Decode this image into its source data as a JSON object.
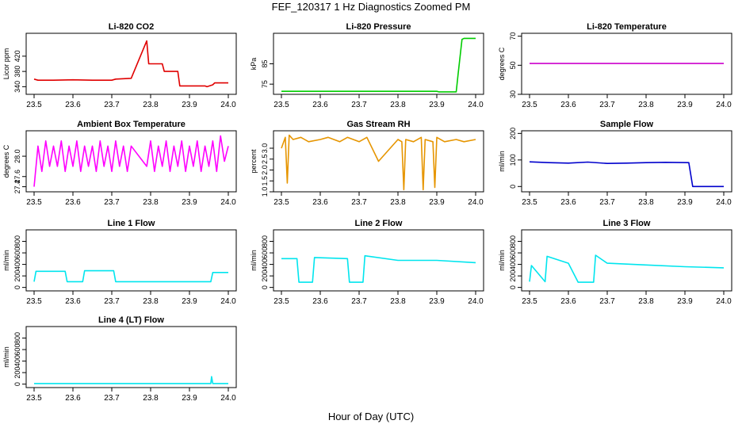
{
  "title": "FEF_120317 1 Hz Diagnostics Zoomed PM",
  "xlabel": "Hour of Day (UTC)",
  "chart_data": [
    {
      "type": "line",
      "title": "Li-820 CO2",
      "ylabel": "Licor ppm",
      "color": "#e00000",
      "xlim": [
        23.5,
        24.0
      ],
      "x_ticks": [
        "23.5",
        "23.6",
        "23.7",
        "23.8",
        "23.9",
        "24.0"
      ],
      "ylim": [
        320,
        480
      ],
      "y_ticks": [
        "340",
        "380",
        "420"
      ],
      "series": [
        {
          "x": [
            23.5,
            23.51,
            23.55,
            23.6,
            23.65,
            23.7,
            23.71,
            23.75,
            23.79,
            23.795,
            23.83,
            23.835,
            23.87,
            23.875,
            23.94,
            23.945,
            23.96,
            23.965,
            24.0
          ],
          "y": [
            360,
            357,
            357,
            358,
            357,
            357,
            360,
            362,
            460,
            400,
            400,
            380,
            380,
            342,
            342,
            340,
            345,
            350,
            350
          ]
        }
      ]
    },
    {
      "type": "line",
      "title": "Li-820 Pressure",
      "ylabel": "kPa",
      "color": "#00cc00",
      "xlim": [
        23.5,
        24.0
      ],
      "x_ticks": [
        "23.5",
        "23.6",
        "23.7",
        "23.8",
        "23.9",
        "24.0"
      ],
      "ylim": [
        70,
        100
      ],
      "y_ticks": [
        "75",
        "85"
      ],
      "series": [
        {
          "x": [
            23.5,
            23.6,
            23.8,
            23.9,
            23.905,
            23.95,
            23.955,
            23.965,
            23.97,
            24.0
          ],
          "y": [
            71.5,
            71.5,
            71.5,
            71.5,
            71.2,
            71.2,
            80,
            97,
            97.5,
            97.5
          ]
        }
      ]
    },
    {
      "type": "line",
      "title": "Li-820 Temperature",
      "ylabel": "degrees C",
      "color": "#cc00cc",
      "xlim": [
        23.5,
        24.0
      ],
      "x_ticks": [
        "23.5",
        "23.6",
        "23.7",
        "23.8",
        "23.9",
        "24.0"
      ],
      "ylim": [
        30,
        72
      ],
      "y_ticks": [
        "30",
        "50",
        "70"
      ],
      "series": [
        {
          "x": [
            23.5,
            24.0
          ],
          "y": [
            51.2,
            51.2
          ]
        }
      ]
    },
    {
      "type": "line",
      "title": "Ambient Box Temperature",
      "ylabel": "degrees C",
      "color": "#ff00ff",
      "xlim": [
        23.5,
        24.0
      ],
      "x_ticks": [
        "23.5",
        "23.6",
        "23.7",
        "23.8",
        "23.9",
        "24.0"
      ],
      "ylim": [
        27.3,
        28.5
      ],
      "y_ticks": [
        "27.4",
        "27.6",
        "28.0"
      ],
      "series": [
        {
          "x": [
            23.5,
            23.51,
            23.52,
            23.53,
            23.54,
            23.55,
            23.56,
            23.57,
            23.58,
            23.59,
            23.6,
            23.61,
            23.62,
            23.63,
            23.64,
            23.65,
            23.66,
            23.67,
            23.68,
            23.69,
            23.7,
            23.71,
            23.72,
            23.73,
            23.74,
            23.75,
            23.79,
            23.8,
            23.81,
            23.82,
            23.83,
            23.84,
            23.85,
            23.86,
            23.87,
            23.88,
            23.89,
            23.9,
            23.91,
            23.92,
            23.93,
            23.94,
            23.95,
            23.96,
            23.97,
            23.98,
            23.99,
            24.0
          ],
          "y": [
            27.4,
            28.2,
            27.7,
            28.3,
            27.8,
            28.2,
            27.8,
            28.3,
            27.7,
            28.2,
            27.8,
            28.3,
            27.7,
            28.2,
            27.8,
            28.2,
            27.7,
            28.3,
            27.8,
            28.2,
            27.7,
            28.3,
            27.8,
            28.2,
            27.7,
            28.2,
            27.8,
            28.3,
            27.7,
            28.2,
            27.8,
            28.3,
            27.7,
            28.2,
            27.8,
            28.3,
            27.7,
            28.2,
            27.8,
            28.3,
            27.7,
            28.2,
            27.8,
            28.3,
            27.7,
            28.4,
            27.9,
            28.2
          ]
        }
      ]
    },
    {
      "type": "line",
      "title": "Gas Stream RH",
      "ylabel": "percent",
      "color": "#e69500",
      "xlim": [
        23.5,
        24.0
      ],
      "x_ticks": [
        "23.5",
        "23.6",
        "23.7",
        "23.8",
        "23.9",
        "24.0"
      ],
      "ylim": [
        1.0,
        3.8
      ],
      "y_ticks": [
        "1.0",
        "1.5",
        "2.0",
        "2.5",
        "3.0"
      ],
      "series": [
        {
          "x": [
            23.5,
            23.51,
            23.515,
            23.52,
            23.53,
            23.55,
            23.57,
            23.6,
            23.62,
            23.65,
            23.67,
            23.7,
            23.72,
            23.75,
            23.79,
            23.8,
            23.81,
            23.815,
            23.82,
            23.84,
            23.86,
            23.865,
            23.87,
            23.89,
            23.895,
            23.9,
            23.92,
            23.95,
            23.97,
            24.0
          ],
          "y": [
            3.0,
            3.5,
            1.4,
            3.6,
            3.4,
            3.5,
            3.3,
            3.4,
            3.5,
            3.3,
            3.5,
            3.3,
            3.5,
            2.4,
            3.2,
            3.4,
            3.3,
            1.1,
            3.4,
            3.3,
            3.5,
            1.1,
            3.4,
            3.3,
            1.2,
            3.5,
            3.3,
            3.4,
            3.3,
            3.4
          ]
        }
      ]
    },
    {
      "type": "line",
      "title": "Sample Flow",
      "ylabel": "ml/min",
      "color": "#0000cc",
      "xlim": [
        23.5,
        24.0
      ],
      "x_ticks": [
        "23.5",
        "23.6",
        "23.7",
        "23.8",
        "23.9",
        "24.0"
      ],
      "ylim": [
        -20,
        210
      ],
      "y_ticks": [
        "0",
        "100",
        "200"
      ],
      "series": [
        {
          "x": [
            23.5,
            23.55,
            23.6,
            23.65,
            23.7,
            23.75,
            23.8,
            23.85,
            23.91,
            23.92,
            24.0
          ],
          "y": [
            93,
            90,
            88,
            92,
            87,
            88,
            90,
            91,
            90,
            0,
            0
          ]
        }
      ]
    },
    {
      "type": "line",
      "title": "Line 1 Flow",
      "ylabel": "ml/min",
      "color": "#00e5ee",
      "xlim": [
        23.5,
        24.0
      ],
      "x_ticks": [
        "23.5",
        "23.6",
        "23.7",
        "23.8",
        "23.9",
        "24.0"
      ],
      "ylim": [
        -60,
        1000
      ],
      "y_ticks": [
        "0",
        "200",
        "400",
        "600",
        "800"
      ],
      "series": [
        {
          "x": [
            23.5,
            23.505,
            23.58,
            23.585,
            23.625,
            23.63,
            23.705,
            23.71,
            23.955,
            23.96,
            24.0
          ],
          "y": [
            100,
            280,
            280,
            100,
            100,
            290,
            290,
            100,
            100,
            260,
            260
          ]
        }
      ]
    },
    {
      "type": "line",
      "title": "Line 2 Flow",
      "ylabel": "ml/min",
      "color": "#00e5ee",
      "xlim": [
        23.5,
        24.0
      ],
      "x_ticks": [
        "23.5",
        "23.6",
        "23.7",
        "23.8",
        "23.9",
        "24.0"
      ],
      "ylim": [
        -60,
        1000
      ],
      "y_ticks": [
        "0",
        "200",
        "400",
        "600",
        "800"
      ],
      "series": [
        {
          "x": [
            23.5,
            23.54,
            23.545,
            23.58,
            23.585,
            23.67,
            23.675,
            23.71,
            23.715,
            23.8,
            23.9,
            24.0
          ],
          "y": [
            500,
            500,
            90,
            90,
            520,
            500,
            90,
            90,
            550,
            470,
            470,
            430
          ]
        }
      ]
    },
    {
      "type": "line",
      "title": "Line 3 Flow",
      "ylabel": "ml/min",
      "color": "#00e5ee",
      "xlim": [
        23.5,
        24.0
      ],
      "x_ticks": [
        "23.5",
        "23.6",
        "23.7",
        "23.8",
        "23.9",
        "24.0"
      ],
      "ylim": [
        -60,
        1000
      ],
      "y_ticks": [
        "0",
        "200",
        "400",
        "600",
        "800"
      ],
      "series": [
        {
          "x": [
            23.5,
            23.505,
            23.54,
            23.545,
            23.6,
            23.625,
            23.63,
            23.665,
            23.67,
            23.7,
            23.8,
            23.9,
            24.0
          ],
          "y": [
            100,
            380,
            100,
            540,
            420,
            90,
            90,
            90,
            560,
            420,
            390,
            360,
            340
          ]
        }
      ]
    },
    {
      "type": "line",
      "title": "Line 4 (LT) Flow",
      "ylabel": "ml/min",
      "color": "#00e5ee",
      "xlim": [
        23.5,
        24.0
      ],
      "x_ticks": [
        "23.5",
        "23.6",
        "23.7",
        "23.8",
        "23.9",
        "24.0"
      ],
      "ylim": [
        -60,
        1000
      ],
      "y_ticks": [
        "0",
        "200",
        "400",
        "600",
        "800"
      ],
      "series": [
        {
          "x": [
            23.5,
            23.7,
            23.955,
            23.957,
            23.96,
            24.0
          ],
          "y": [
            10,
            10,
            10,
            130,
            10,
            10
          ]
        }
      ]
    }
  ]
}
